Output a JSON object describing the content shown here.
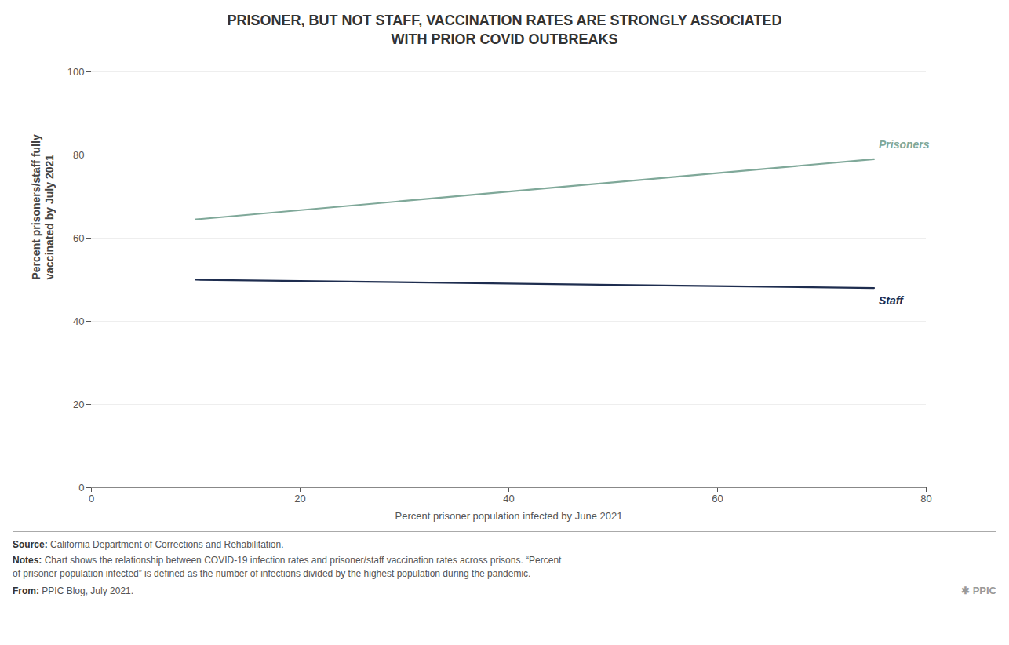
{
  "chart_data": {
    "type": "line",
    "title": "PRISONER, BUT NOT STAFF, VACCINATION RATES ARE STRONGLY ASSOCIATED\nWITH PRIOR COVID OUTBREAKS",
    "x_label": "Percent prisoner population infected by June 2021",
    "y_label": "Percent prisoners/staff fully\nvaccinated by July 2021",
    "x": [
      10,
      75
    ],
    "series": [
      {
        "name": "Prisoners",
        "color": "#7fa899",
        "values": [
          64.5,
          79
        ]
      },
      {
        "name": "Staff",
        "color": "#1e2d4f",
        "values": [
          50,
          48
        ]
      }
    ],
    "xlim": [
      0,
      80
    ],
    "ylim": [
      0,
      100
    ],
    "xticks": [
      0,
      20,
      40,
      60,
      80
    ],
    "yticks": [
      0,
      20,
      40,
      60,
      80,
      100
    ],
    "grid": true,
    "footnotes": [
      {
        "label": "Source:",
        "text": "California Department of Corrections and Rehabilitation."
      },
      {
        "label": "Notes:",
        "text": "Chart shows the relationship between COVID-19 infection rates and prisoner/staff vaccination rates across prisons. “Percent\nof prisoner population infected” is defined as the number of infections divided by the highest population during the pandemic."
      },
      {
        "label": "From:",
        "text": "PPIC Blog, July 2021."
      }
    ],
    "logo": "✱ PPIC"
  }
}
